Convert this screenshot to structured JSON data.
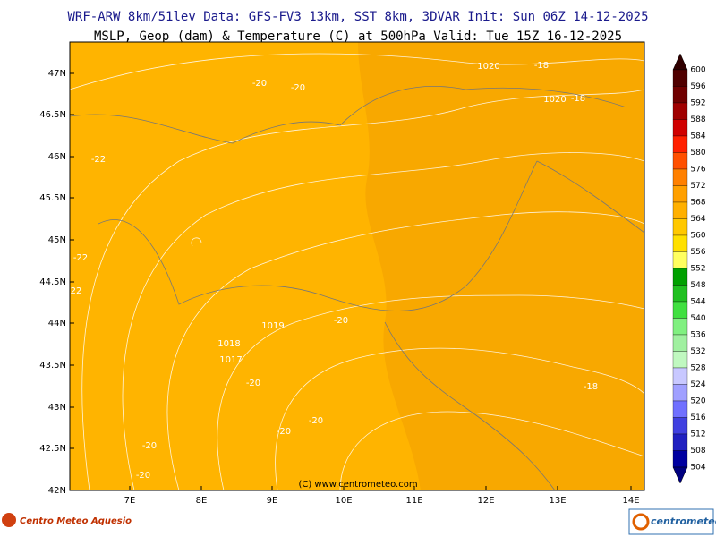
{
  "header": {
    "line1": "WRF-ARW 8km/51lev  Data: GFS-FV3 13km, SST 8km, 3DVAR  Init: Sun 06Z 14-12-2025",
    "line2": "MSLP, Geop (dam) & Temperature (C) at 500hPa  Valid: Tue 15Z 16-12-2025"
  },
  "map": {
    "lat_labels": [
      "47N",
      "46.5N",
      "46N",
      "45.5N",
      "45N",
      "44.5N",
      "44N",
      "43.5N",
      "43N",
      "42.5N",
      "42N"
    ],
    "lon_labels": [
      "7E",
      "8E",
      "9E",
      "10E",
      "11E",
      "12E",
      "13E",
      "14E"
    ],
    "contour_labels": [
      "1020",
      "-18",
      "-20",
      "-20",
      "1020",
      "-18",
      "-22",
      "-22",
      "22",
      "-20",
      "1019",
      "1018",
      "1017",
      "-20",
      "-18",
      "-20",
      "-20",
      "-20",
      "-20"
    ],
    "credit": "(C) www.centrometeo.com"
  },
  "colorbar": {
    "labels": [
      600,
      596,
      592,
      588,
      584,
      580,
      576,
      572,
      568,
      564,
      560,
      556,
      552,
      548,
      544,
      540,
      536,
      532,
      528,
      524,
      520,
      516,
      512,
      508,
      504
    ],
    "colors": [
      "#500000",
      "#700000",
      "#a00000",
      "#d00000",
      "#ff2000",
      "#ff5000",
      "#ff8000",
      "#ffa000",
      "#ffb000",
      "#ffc800",
      "#ffe000",
      "#ffff60",
      "#00a000",
      "#20c020",
      "#40e040",
      "#80f080",
      "#a0f0a0",
      "#c0f8c0",
      "#c8c8ff",
      "#a0a0ff",
      "#7070ff",
      "#4040e0",
      "#2020c0",
      "#0000a0"
    ]
  },
  "footer": {
    "left_logo": "Centro Meteo Aquesio",
    "right_logo": "centrometeo"
  }
}
